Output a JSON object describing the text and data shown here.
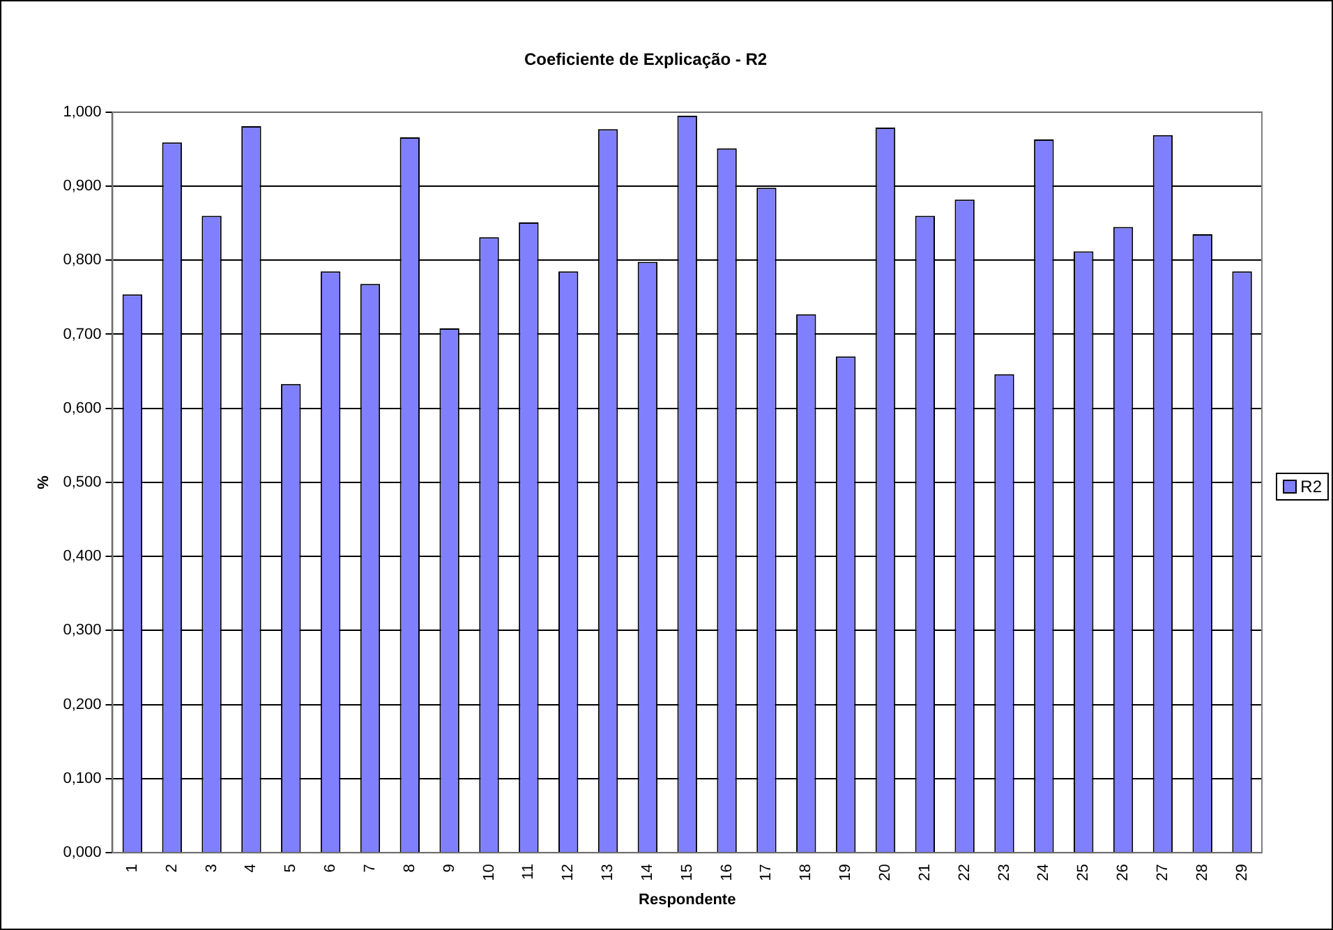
{
  "chart_data": {
    "type": "bar",
    "title": "Coeficiente de Explicação - R2",
    "xlabel": "Respondente",
    "ylabel": "%",
    "categories": [
      "1",
      "2",
      "3",
      "4",
      "5",
      "6",
      "7",
      "8",
      "9",
      "10",
      "11",
      "12",
      "13",
      "14",
      "15",
      "16",
      "17",
      "18",
      "19",
      "20",
      "21",
      "22",
      "23",
      "24",
      "25",
      "26",
      "27",
      "28",
      "29"
    ],
    "series": [
      {
        "name": "R2",
        "color": "#8080ff",
        "values": [
          0.754,
          0.959,
          0.86,
          0.981,
          0.633,
          0.785,
          0.768,
          0.966,
          0.708,
          0.831,
          0.851,
          0.785,
          0.977,
          0.798,
          0.995,
          0.951,
          0.898,
          0.727,
          0.67,
          0.979,
          0.86,
          0.882,
          0.646,
          0.963,
          0.812,
          0.845,
          0.969,
          0.835,
          0.785
        ]
      }
    ],
    "ylim": [
      0,
      1
    ],
    "yticks": [
      {
        "value": 0,
        "label": "0,000"
      },
      {
        "value": 0.1,
        "label": "0,100"
      },
      {
        "value": 0.2,
        "label": "0,200"
      },
      {
        "value": 0.3,
        "label": "0,300"
      },
      {
        "value": 0.4,
        "label": "0,400"
      },
      {
        "value": 0.5,
        "label": "0,500"
      },
      {
        "value": 0.6,
        "label": "0,600"
      },
      {
        "value": 0.7,
        "label": "0,700"
      },
      {
        "value": 0.8,
        "label": "0,800"
      },
      {
        "value": 0.9,
        "label": "0,900"
      },
      {
        "value": 1,
        "label": "1,000"
      }
    ],
    "grid": "y",
    "legend": "right"
  }
}
